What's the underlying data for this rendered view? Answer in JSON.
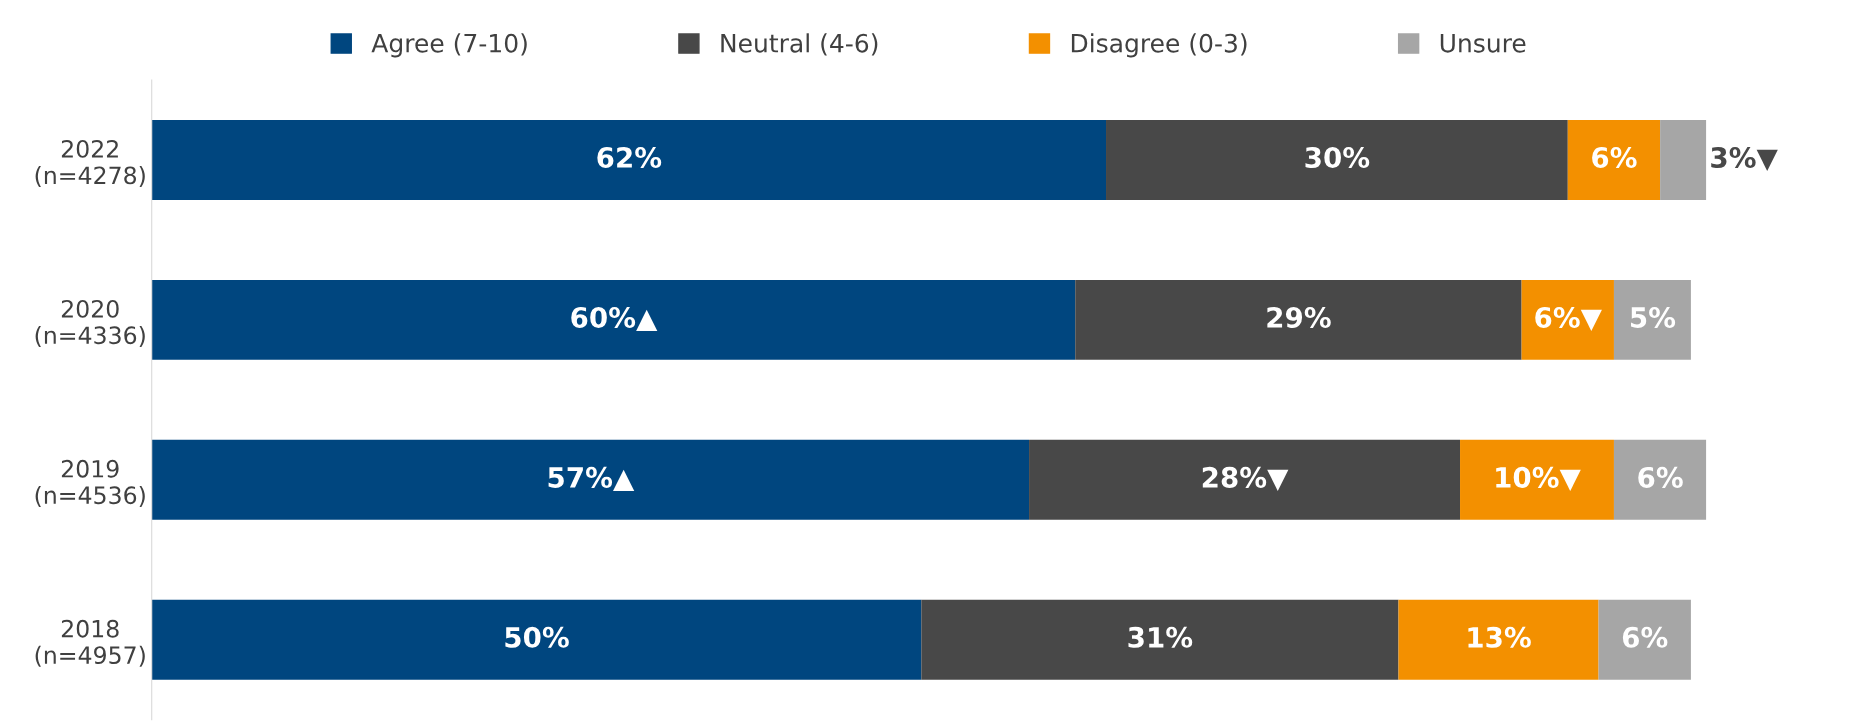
{
  "chart_data": {
    "type": "bar",
    "orientation": "horizontal",
    "stacked": true,
    "categories": [
      "2022\n(n=4278)",
      "2020\n(n=4336)",
      "2019\n(n=4536)",
      "2018\n(n=4957)"
    ],
    "series": [
      {
        "name": "Agree (7-10)",
        "color": "#00467f",
        "values": [
          62,
          60,
          57,
          50
        ],
        "value_labels": [
          "62%",
          "60%▲",
          "57%▲",
          "50%"
        ]
      },
      {
        "name": "Neutral (4-6)",
        "color": "#484848",
        "values": [
          30,
          29,
          28,
          31
        ],
        "value_labels": [
          "30%",
          "29%",
          "28%▼",
          "31%"
        ]
      },
      {
        "name": "Disagree (0-3)",
        "color": "#f39000",
        "values": [
          6,
          6,
          10,
          13
        ],
        "value_labels": [
          "6%",
          "6%▼",
          "10%▼",
          "13%"
        ]
      },
      {
        "name": "Unsure",
        "color": "#a6a6a6",
        "values": [
          3,
          5,
          6,
          6
        ],
        "value_labels": [
          "3%▼",
          "5%",
          "6%",
          "6%"
        ]
      }
    ],
    "legend": "top",
    "grid": false
  }
}
